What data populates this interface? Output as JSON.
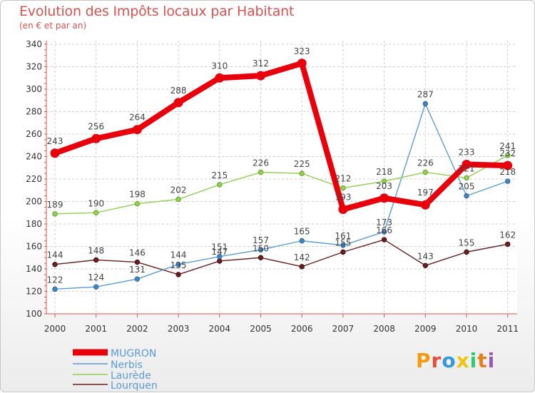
{
  "chart_data": {
    "type": "line",
    "title": "Evolution des Impôts locaux par Habitant",
    "subtitle": "(en € et par an)",
    "xlabel": "",
    "ylabel": "",
    "ylim": [
      100,
      340
    ],
    "yticks": [
      100,
      120,
      140,
      160,
      180,
      200,
      220,
      240,
      260,
      280,
      300,
      320,
      340
    ],
    "categories": [
      "2000",
      "2001",
      "2002",
      "2003",
      "2004",
      "2005",
      "2006",
      "2007",
      "2008",
      "2009",
      "2010",
      "2011"
    ],
    "legend_position": "bottom-left",
    "series": [
      {
        "name": "MUGRON",
        "color": "#e8000b",
        "values": [
          243,
          256,
          264,
          288,
          310,
          312,
          323,
          193,
          203,
          197,
          233,
          232
        ]
      },
      {
        "name": "Nerbis",
        "color": "#5b9bd5",
        "values": [
          122,
          124,
          131,
          144,
          151,
          157,
          165,
          161,
          173,
          287,
          205,
          218
        ]
      },
      {
        "name": "Laurède",
        "color": "#8fd14f",
        "values": [
          189,
          190,
          198,
          202,
          215,
          226,
          225,
          212,
          218,
          226,
          221,
          241
        ]
      },
      {
        "name": "Lourquen",
        "color": "#6b1e1e",
        "values": [
          144,
          148,
          146,
          135,
          147,
          150,
          142,
          155,
          166,
          143,
          155,
          162
        ]
      }
    ]
  },
  "logo": {
    "text": "Proxiti"
  }
}
